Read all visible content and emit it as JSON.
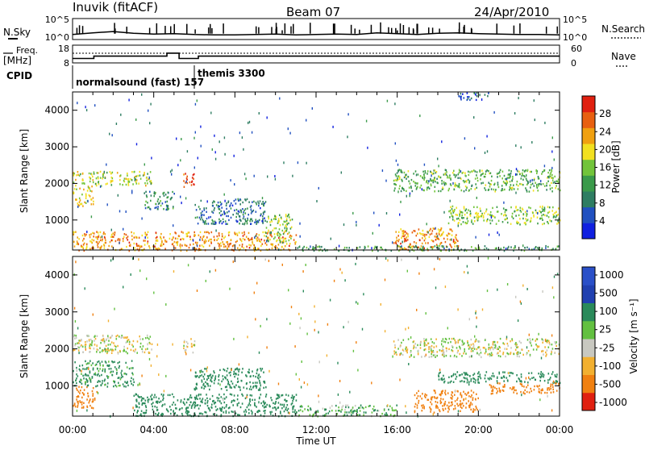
{
  "header": {
    "site": "Inuvik (fitACF)",
    "beam": "Beam 07",
    "date": "24/Apr/2010"
  },
  "top_panel": {
    "left_label": "N.Sky",
    "right_label": "N.Search",
    "left_ticks": [
      "10^5",
      "10^0"
    ],
    "right_ticks": [
      "10^5",
      "10^0"
    ]
  },
  "freq_panel": {
    "left_label_1": "Freq.",
    "left_label_2": "[MHz]",
    "left_ticks": [
      "18",
      "8"
    ],
    "right_label": "Nave",
    "right_ticks": [
      "60",
      "0"
    ]
  },
  "cpid": {
    "label": "CPID",
    "mode_1": "normalsound (fast) 157",
    "mode_2": "themis 3300"
  },
  "x_axis": {
    "ticks": [
      "00:00",
      "04:00",
      "08:00",
      "12:00",
      "16:00",
      "20:00",
      "00:00"
    ],
    "label": "Time UT"
  },
  "power_panel": {
    "ylabel": "Slant Range [km]",
    "yticks": [
      "4000",
      "3000",
      "2000",
      "1000"
    ],
    "colorbar_label": "Power [dB]",
    "colorbar_ticks": [
      "28",
      "24",
      "20",
      "16",
      "12",
      "8",
      "4"
    ]
  },
  "velocity_panel": {
    "ylabel": "Slant Range [km]",
    "yticks": [
      "4000",
      "3000",
      "2000",
      "1000"
    ],
    "colorbar_label": "Velocity [m s⁻¹]",
    "colorbar_ticks": [
      "1000",
      "500",
      "100",
      "25",
      "-25",
      "-100",
      "-500",
      "-1000"
    ]
  },
  "chart_data": [
    {
      "type": "line",
      "panel": "noise",
      "title": "",
      "x_hours": [
        0,
        1,
        2,
        3,
        4,
        5,
        6,
        7,
        8,
        9,
        10,
        11,
        12,
        13,
        14,
        15,
        16,
        17,
        18,
        19,
        20,
        21,
        22,
        23,
        24
      ],
      "series": [
        {
          "name": "N.Sky",
          "values_log10": [
            1.2,
            1.6,
            1.9,
            1.5,
            1.3,
            1.4,
            1.2,
            1.1,
            1.1,
            1.2,
            1.3,
            1.1,
            1.2,
            1.3,
            1.2,
            1.6,
            1.4,
            1.2,
            1.5,
            1.6,
            1.4,
            1.3,
            1.2,
            1.2,
            1.1
          ]
        }
      ],
      "ylim_log10": [
        0,
        5
      ]
    },
    {
      "type": "line",
      "panel": "frequency",
      "x_hours": [
        0,
        0.9,
        1.05,
        4.5,
        4.65,
        5.1,
        5.25,
        6.1,
        6.2,
        24
      ],
      "series": [
        {
          "name": "Freq.",
          "values": [
            10.5,
            10.5,
            11.8,
            11.8,
            13.5,
            13.5,
            10.5,
            10.5,
            11.8,
            11.8
          ]
        }
      ],
      "ylim": [
        8,
        18
      ]
    },
    {
      "type": "heatmap",
      "panel": "power",
      "xlim_hours": [
        0,
        24
      ],
      "ylim_km": [
        180,
        4500
      ],
      "colorbar_range_db": [
        0,
        32
      ],
      "blobs": [
        {
          "t": [
            0.0,
            3.9
          ],
          "r": [
            1950,
            2350
          ],
          "v": 18
        },
        {
          "t": [
            0.0,
            1.0
          ],
          "r": [
            1400,
            1950
          ],
          "v": 20
        },
        {
          "t": [
            5.4,
            6.0
          ],
          "r": [
            1900,
            2300
          ],
          "v": 28
        },
        {
          "t": [
            0.0,
            11.0
          ],
          "r": [
            180,
            700
          ],
          "v": 24
        },
        {
          "t": [
            3.5,
            5.0
          ],
          "r": [
            1300,
            1800
          ],
          "v": 10
        },
        {
          "t": [
            6.0,
            9.5
          ],
          "r": [
            900,
            1600
          ],
          "v": 8
        },
        {
          "t": [
            9.5,
            10.8
          ],
          "r": [
            400,
            1200
          ],
          "v": 16
        },
        {
          "t": [
            15.8,
            19.0
          ],
          "r": [
            200,
            800
          ],
          "v": 24
        },
        {
          "t": [
            15.8,
            24.0
          ],
          "r": [
            1800,
            2400
          ],
          "v": 14
        },
        {
          "t": [
            18.5,
            24.0
          ],
          "r": [
            900,
            1400
          ],
          "v": 16
        },
        {
          "t": [
            19.0,
            20.5
          ],
          "r": [
            4300,
            4500
          ],
          "v": 6
        },
        {
          "t": [
            11.0,
            24.0
          ],
          "r": [
            180,
            320
          ],
          "v": 12
        }
      ]
    },
    {
      "type": "heatmap",
      "panel": "velocity",
      "xlim_hours": [
        0,
        24
      ],
      "ylim_km": [
        180,
        4500
      ],
      "colorbar_range_ms": [
        -1000,
        1000
      ],
      "blobs": [
        {
          "t": [
            0.0,
            3.9
          ],
          "r": [
            1900,
            2400
          ],
          "v": 0
        },
        {
          "t": [
            5.4,
            6.0
          ],
          "r": [
            1900,
            2300
          ],
          "v": 0
        },
        {
          "t": [
            0.0,
            1.2
          ],
          "r": [
            400,
            1000
          ],
          "v": -400
        },
        {
          "t": [
            0.0,
            3.0
          ],
          "r": [
            1000,
            1700
          ],
          "v": 150
        },
        {
          "t": [
            3.0,
            11.0
          ],
          "r": [
            200,
            800
          ],
          "v": 200
        },
        {
          "t": [
            6.0,
            9.5
          ],
          "r": [
            900,
            1500
          ],
          "v": 250
        },
        {
          "t": [
            15.8,
            24.0
          ],
          "r": [
            1800,
            2300
          ],
          "v": 0
        },
        {
          "t": [
            18.0,
            24.0
          ],
          "r": [
            1100,
            1400
          ],
          "v": 300
        },
        {
          "t": [
            16.8,
            20.0
          ],
          "r": [
            300,
            900
          ],
          "v": -400
        },
        {
          "t": [
            20.5,
            24.0
          ],
          "r": [
            800,
            1100
          ],
          "v": -350
        },
        {
          "t": [
            11.0,
            16.0
          ],
          "r": [
            200,
            500
          ],
          "v": 100
        }
      ]
    }
  ]
}
